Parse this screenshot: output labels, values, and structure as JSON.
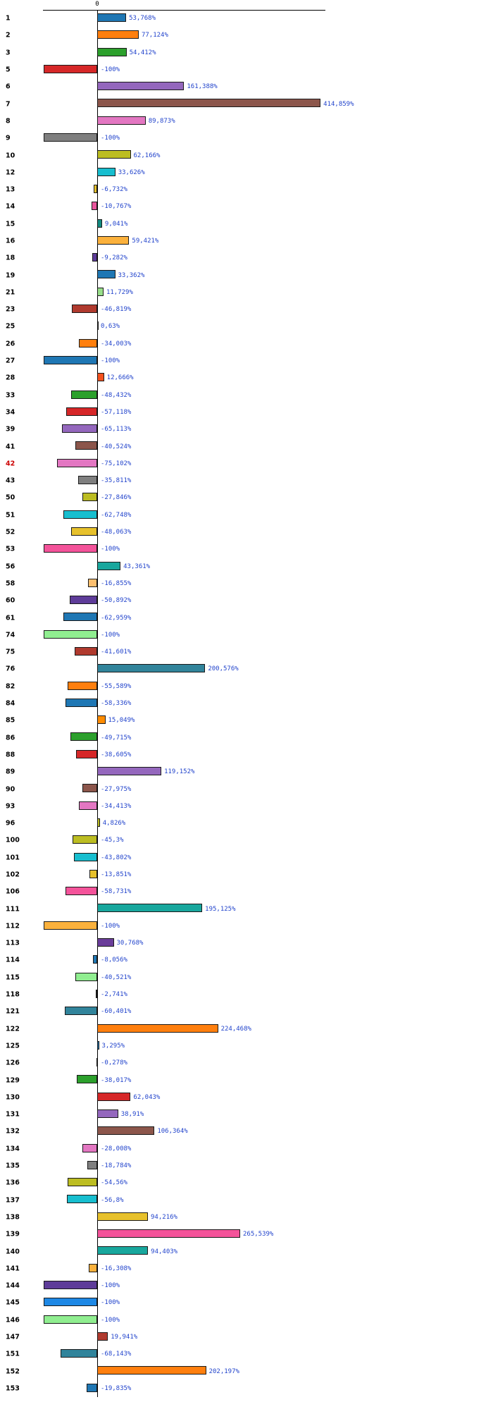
{
  "colors": {
    "value_label": "#2244cc",
    "highlight_label": "#cc0000",
    "axis": "#000000",
    "background": "#ffffff"
  },
  "chart_data": {
    "type": "bar",
    "orientation": "horizontal",
    "title": "",
    "xlabel": "",
    "ylabel": "",
    "axis_zero_label": "0",
    "value_suffix": "%",
    "xlim": [
      -100,
      425
    ],
    "grid": false,
    "legend": "none",
    "highlighted_category": "42",
    "rows": [
      {
        "cat": "1",
        "value": 53.768,
        "display": "53,768%",
        "color": "#1f77b4"
      },
      {
        "cat": "2",
        "value": 77.124,
        "display": "77,124%",
        "color": "#ff7f0e"
      },
      {
        "cat": "3",
        "value": 54.412,
        "display": "54,412%",
        "color": "#2ca02c"
      },
      {
        "cat": "5",
        "value": -100,
        "display": "-100%",
        "color": "#d62728"
      },
      {
        "cat": "6",
        "value": 161.388,
        "display": "161,388%",
        "color": "#9467bd"
      },
      {
        "cat": "7",
        "value": 414.859,
        "display": "414,859%",
        "color": "#8c564b"
      },
      {
        "cat": "8",
        "value": 89.873,
        "display": "89,873%",
        "color": "#e377c2"
      },
      {
        "cat": "9",
        "value": -100,
        "display": "-100%",
        "color": "#7f7f7f"
      },
      {
        "cat": "10",
        "value": 62.166,
        "display": "62,166%",
        "color": "#bcbd22"
      },
      {
        "cat": "12",
        "value": 33.626,
        "display": "33,626%",
        "color": "#17becf"
      },
      {
        "cat": "13",
        "value": -6.732,
        "display": "-6,732%",
        "color": "#e7c12c"
      },
      {
        "cat": "14",
        "value": -10.767,
        "display": "-10,767%",
        "color": "#e8559c"
      },
      {
        "cat": "15",
        "value": 9.041,
        "display": "9,041%",
        "color": "#128a80"
      },
      {
        "cat": "16",
        "value": 59.421,
        "display": "59,421%",
        "color": "#fbb13c"
      },
      {
        "cat": "18",
        "value": -9.282,
        "display": "-9,282%",
        "color": "#5e3c99"
      },
      {
        "cat": "19",
        "value": 33.362,
        "display": "33,362%",
        "color": "#1f77b4"
      },
      {
        "cat": "21",
        "value": 11.729,
        "display": "11,729%",
        "color": "#98df8a"
      },
      {
        "cat": "23",
        "value": -46.819,
        "display": "-46,819%",
        "color": "#b03a2e"
      },
      {
        "cat": "25",
        "value": 0.63,
        "display": "0,63%",
        "color": "#17becf"
      },
      {
        "cat": "26",
        "value": -34.003,
        "display": "-34,003%",
        "color": "#ff7f0e"
      },
      {
        "cat": "27",
        "value": -100,
        "display": "-100%",
        "color": "#1f77b4"
      },
      {
        "cat": "28",
        "value": 12.666,
        "display": "12,666%",
        "color": "#f4511e"
      },
      {
        "cat": "33",
        "value": -48.432,
        "display": "-48,432%",
        "color": "#2ca02c"
      },
      {
        "cat": "34",
        "value": -57.118,
        "display": "-57,118%",
        "color": "#d62728"
      },
      {
        "cat": "39",
        "value": -65.113,
        "display": "-65,113%",
        "color": "#9467bd"
      },
      {
        "cat": "41",
        "value": -40.524,
        "display": "-40,524%",
        "color": "#8c564b"
      },
      {
        "cat": "42",
        "value": -75.102,
        "display": "-75,102%",
        "color": "#e377c2",
        "red": true
      },
      {
        "cat": "43",
        "value": -35.811,
        "display": "-35,811%",
        "color": "#7f7f7f"
      },
      {
        "cat": "50",
        "value": -27.846,
        "display": "-27,846%",
        "color": "#bcbd22"
      },
      {
        "cat": "51",
        "value": -62.748,
        "display": "-62,748%",
        "color": "#17becf"
      },
      {
        "cat": "52",
        "value": -48.063,
        "display": "-48,063%",
        "color": "#e7c12c"
      },
      {
        "cat": "53",
        "value": -100,
        "display": "-100%",
        "color": "#f4539a"
      },
      {
        "cat": "56",
        "value": 43.361,
        "display": "43,361%",
        "color": "#18a79d"
      },
      {
        "cat": "58",
        "value": -16.855,
        "display": "-16,855%",
        "color": "#fdbf6f"
      },
      {
        "cat": "60",
        "value": -50.892,
        "display": "-50,892%",
        "color": "#5e3c99"
      },
      {
        "cat": "61",
        "value": -62.959,
        "display": "-62,959%",
        "color": "#1f77b4"
      },
      {
        "cat": "74",
        "value": -100,
        "display": "-100%",
        "color": "#90ee90"
      },
      {
        "cat": "75",
        "value": -41.601,
        "display": "-41,601%",
        "color": "#b03a2e"
      },
      {
        "cat": "76",
        "value": 200.576,
        "display": "200,576%",
        "color": "#31849b"
      },
      {
        "cat": "82",
        "value": -55.589,
        "display": "-55,589%",
        "color": "#ff7f0e"
      },
      {
        "cat": "84",
        "value": -58.336,
        "display": "-58,336%",
        "color": "#1f77b4"
      },
      {
        "cat": "85",
        "value": 15.049,
        "display": "15,049%",
        "color": "#ff8c00"
      },
      {
        "cat": "86",
        "value": -49.715,
        "display": "-49,715%",
        "color": "#2ca02c"
      },
      {
        "cat": "88",
        "value": -38.605,
        "display": "-38,605%",
        "color": "#d62728"
      },
      {
        "cat": "89",
        "value": 119.152,
        "display": "119,152%",
        "color": "#9467bd"
      },
      {
        "cat": "90",
        "value": -27.975,
        "display": "-27,975%",
        "color": "#8c564b"
      },
      {
        "cat": "93",
        "value": -34.413,
        "display": "-34,413%",
        "color": "#e377c2"
      },
      {
        "cat": "96",
        "value": 4.826,
        "display": "4,826%",
        "color": "#bcbd22"
      },
      {
        "cat": "100",
        "value": -45.3,
        "display": "-45,3%",
        "color": "#bcbd22"
      },
      {
        "cat": "101",
        "value": -43.802,
        "display": "-43,802%",
        "color": "#17becf"
      },
      {
        "cat": "102",
        "value": -13.851,
        "display": "-13,851%",
        "color": "#e7c12c"
      },
      {
        "cat": "106",
        "value": -58.731,
        "display": "-58,731%",
        "color": "#f4539a"
      },
      {
        "cat": "111",
        "value": 195.125,
        "display": "195,125%",
        "color": "#18a79d"
      },
      {
        "cat": "112",
        "value": -100,
        "display": "-100%",
        "color": "#fbb13c"
      },
      {
        "cat": "113",
        "value": 30.768,
        "display": "30,768%",
        "color": "#6a3d9a"
      },
      {
        "cat": "114",
        "value": -8.056,
        "display": "-8,056%",
        "color": "#1f77b4"
      },
      {
        "cat": "115",
        "value": -40.521,
        "display": "-40,521%",
        "color": "#90ee90"
      },
      {
        "cat": "118",
        "value": -2.741,
        "display": "-2,741%",
        "color": "#b03a2e"
      },
      {
        "cat": "121",
        "value": -60.401,
        "display": "-60,401%",
        "color": "#31849b"
      },
      {
        "cat": "122",
        "value": 224.468,
        "display": "224,468%",
        "color": "#ff7f0e"
      },
      {
        "cat": "125",
        "value": 3.295,
        "display": "3,295%",
        "color": "#1f77b4"
      },
      {
        "cat": "126",
        "value": -0.278,
        "display": "-0,278%",
        "color": "#90ee90"
      },
      {
        "cat": "129",
        "value": -38.017,
        "display": "-38,017%",
        "color": "#2ca02c"
      },
      {
        "cat": "130",
        "value": 62.043,
        "display": "62,043%",
        "color": "#d62728"
      },
      {
        "cat": "131",
        "value": 38.91,
        "display": "38,91%",
        "color": "#9467bd"
      },
      {
        "cat": "132",
        "value": 106.364,
        "display": "106,364%",
        "color": "#8c564b"
      },
      {
        "cat": "134",
        "value": -28.008,
        "display": "-28,008%",
        "color": "#e377c2"
      },
      {
        "cat": "135",
        "value": -18.784,
        "display": "-18,784%",
        "color": "#7f7f7f"
      },
      {
        "cat": "136",
        "value": -54.56,
        "display": "-54,56%",
        "color": "#bcbd22"
      },
      {
        "cat": "137",
        "value": -56.8,
        "display": "-56,8%",
        "color": "#17becf"
      },
      {
        "cat": "138",
        "value": 94.216,
        "display": "94,216%",
        "color": "#e7c12c"
      },
      {
        "cat": "139",
        "value": 265.539,
        "display": "265,539%",
        "color": "#f4539a"
      },
      {
        "cat": "140",
        "value": 94.403,
        "display": "94,403%",
        "color": "#18a79d"
      },
      {
        "cat": "141",
        "value": -16.308,
        "display": "-16,308%",
        "color": "#fbb13c"
      },
      {
        "cat": "144",
        "value": -100,
        "display": "-100%",
        "color": "#5e3c99"
      },
      {
        "cat": "145",
        "value": -100,
        "display": "-100%",
        "color": "#1e88e5"
      },
      {
        "cat": "146",
        "value": -100,
        "display": "-100%",
        "color": "#90ee90"
      },
      {
        "cat": "147",
        "value": 19.941,
        "display": "19,941%",
        "color": "#b03a2e"
      },
      {
        "cat": "151",
        "value": -68.143,
        "display": "-68,143%",
        "color": "#31849b"
      },
      {
        "cat": "152",
        "value": 202.197,
        "display": "202,197%",
        "color": "#ff7f0e"
      },
      {
        "cat": "153",
        "value": -19.835,
        "display": "-19,835%",
        "color": "#1f77b4"
      }
    ]
  }
}
